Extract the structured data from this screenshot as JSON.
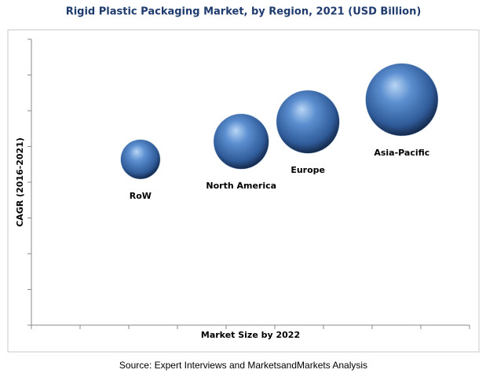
{
  "chart_data": {
    "type": "bubble",
    "title": "Rigid Plastic Packaging Market, by Region, 2021 (USD Billion)",
    "x_label": "Market Size by 2022",
    "y_label": "CAGR (2016-2021)",
    "source": "Source: Expert Interviews and MarketsandMarkets Analysis",
    "categories": [
      "RoW",
      "North America",
      "Europe",
      "Asia-Pacific"
    ],
    "x": [
      2.24,
      4.31,
      5.68,
      7.61
    ],
    "values": [
      4.64,
      5.14,
      5.69,
      6.31
    ],
    "sizes": [
      25,
      35,
      40,
      46
    ],
    "color": "#3d6fb0",
    "xlim": [
      0,
      9
    ],
    "ylim": [
      0,
      8
    ],
    "xticks": [
      0,
      1,
      2,
      3,
      4,
      5,
      6,
      7,
      8,
      9
    ],
    "yticks": [
      0,
      1,
      2,
      3,
      4,
      5,
      6,
      7,
      8
    ]
  }
}
